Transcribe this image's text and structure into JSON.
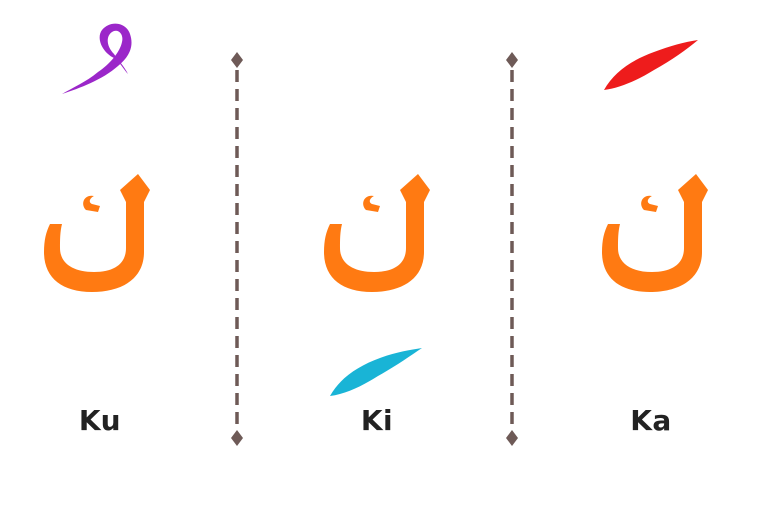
{
  "columns": [
    {
      "id": "ku",
      "letter": "ك",
      "label": "Ku",
      "mark": "dammah",
      "mark_color": "#9b27c9"
    },
    {
      "id": "ki",
      "letter": "ك",
      "label": "Ki",
      "mark": "kasrah",
      "mark_color": "#19b4d6"
    },
    {
      "id": "ka",
      "letter": "ك",
      "label": "Ka",
      "mark": "fathah",
      "mark_color": "#ee1c1c"
    }
  ],
  "colors": {
    "letter": "#ff7a12",
    "divider": "#6e5a57",
    "label": "#222222",
    "background": "#ffffff"
  }
}
